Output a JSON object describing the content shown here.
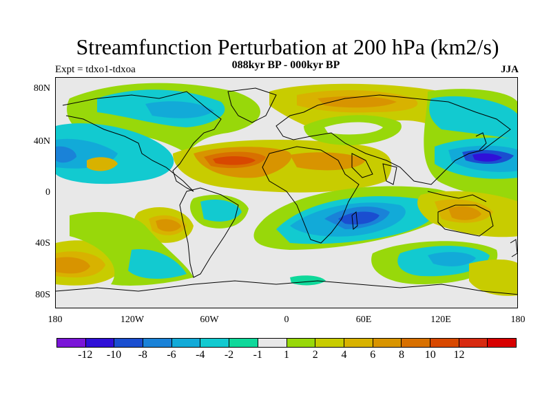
{
  "title": "Streamfunction Perturbation at 200 hPa (km2/s)",
  "subtitle": "088kyr BP - 000kyr BP",
  "left_label": "Expt = tdxo1-tdxoa",
  "right_label": "JJA",
  "y_ticks": [
    "80N",
    "40N",
    "0",
    "40S",
    "80S"
  ],
  "x_ticks": [
    "180",
    "120W",
    "60W",
    "0",
    "60E",
    "120E",
    "180"
  ],
  "colorbar": {
    "colors": [
      "#7a16d8",
      "#3010d8",
      "#1a4ed0",
      "#1a82d8",
      "#12aad8",
      "#12cad0",
      "#0fd89a",
      "#e8e8e8",
      "#98d80a",
      "#c8cc00",
      "#d8b200",
      "#d89400",
      "#d87000",
      "#d84800",
      "#d82a10",
      "#d80000"
    ],
    "labels": [
      "-12",
      "-10",
      "-8",
      "-6",
      "-4",
      "-2",
      "-1",
      "1",
      "2",
      "4",
      "6",
      "8",
      "10",
      "12"
    ]
  }
}
